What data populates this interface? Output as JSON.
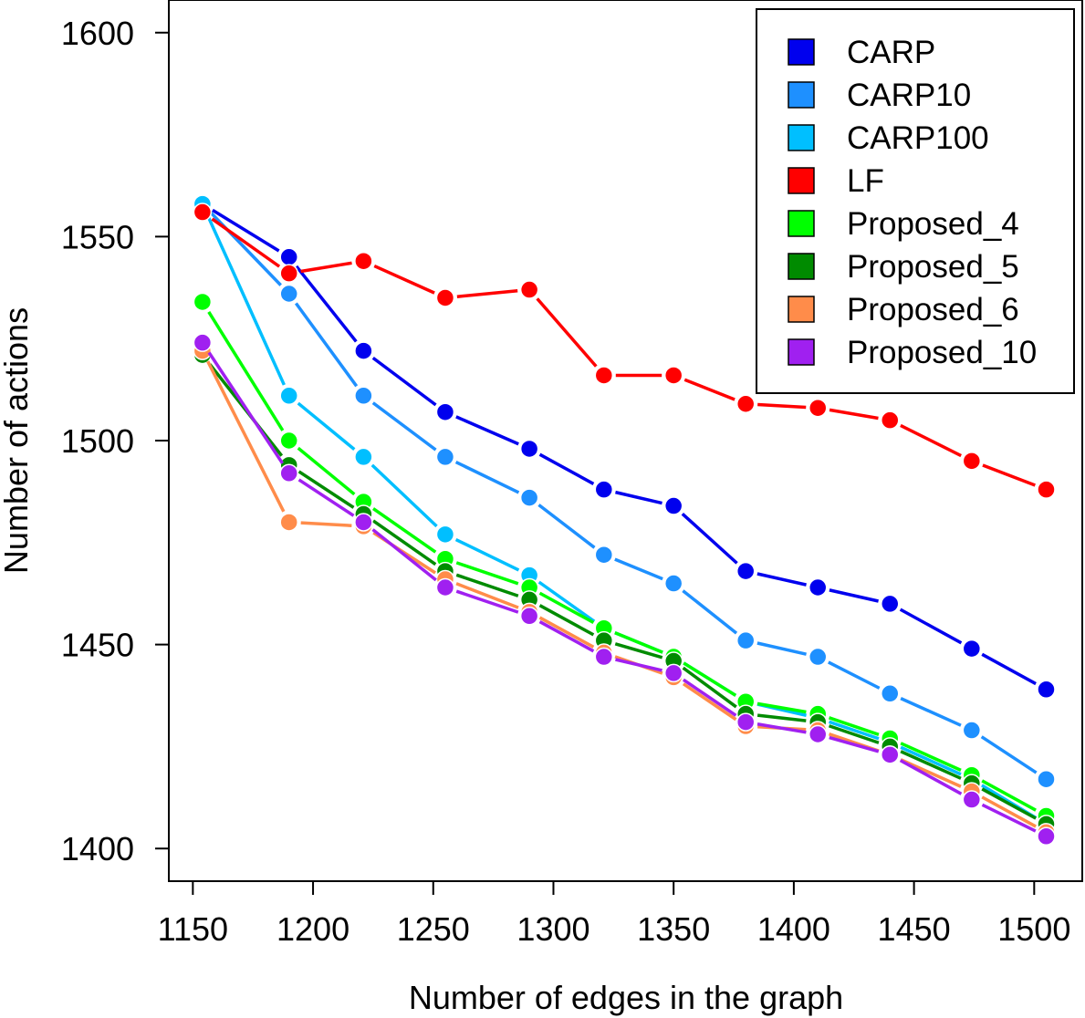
{
  "chart_data": {
    "type": "line",
    "title": "",
    "xlabel": "Number of edges in the graph",
    "ylabel": "Number of actions",
    "xlim": [
      1140,
      1520
    ],
    "ylim": [
      1392,
      1608
    ],
    "x_ticks": [
      1150,
      1200,
      1250,
      1300,
      1350,
      1400,
      1450,
      1500
    ],
    "y_ticks": [
      1400,
      1450,
      1500,
      1550,
      1600
    ],
    "x": [
      1154,
      1190,
      1221,
      1255,
      1290,
      1321,
      1350,
      1380,
      1410,
      1440,
      1474,
      1505
    ],
    "legend_position": "top-right",
    "grid": false,
    "series": [
      {
        "name": "CARP",
        "color": "#0000EE",
        "values": [
          1558,
          1545,
          1522,
          1507,
          1498,
          1488,
          1484,
          1468,
          1464,
          1460,
          1449,
          1439
        ]
      },
      {
        "name": "CARP10",
        "color": "#1E90FF",
        "values": [
          1558,
          1536,
          1511,
          1496,
          1486,
          1472,
          1465,
          1451,
          1447,
          1438,
          1429,
          1417
        ]
      },
      {
        "name": "CARP100",
        "color": "#00BFFF",
        "values": [
          1558,
          1511,
          1496,
          1477,
          1467,
          1454,
          1447,
          1436,
          1432,
          1426,
          1417,
          1406
        ]
      },
      {
        "name": "LF",
        "color": "#FF0000",
        "values": [
          1556,
          1541,
          1544,
          1535,
          1537,
          1516,
          1516,
          1509,
          1508,
          1505,
          1495,
          1488
        ]
      },
      {
        "name": "Proposed_4",
        "color": "#00FF00",
        "values": [
          1534,
          1500,
          1485,
          1471,
          1464,
          1454,
          1447,
          1436,
          1433,
          1427,
          1418,
          1408
        ]
      },
      {
        "name": "Proposed_5",
        "color": "#008B00",
        "values": [
          1521,
          1494,
          1482,
          1468,
          1461,
          1451,
          1446,
          1433,
          1431,
          1425,
          1416,
          1406
        ]
      },
      {
        "name": "Proposed_6",
        "color": "#FF8C4A",
        "values": [
          1522,
          1480,
          1479,
          1466,
          1458,
          1448,
          1442,
          1430,
          1429,
          1423,
          1414,
          1404
        ]
      },
      {
        "name": "Proposed_10",
        "color": "#A020F0",
        "values": [
          1524,
          1492,
          1480,
          1464,
          1457,
          1447,
          1443,
          1431,
          1428,
          1423,
          1412,
          1403
        ]
      }
    ]
  }
}
